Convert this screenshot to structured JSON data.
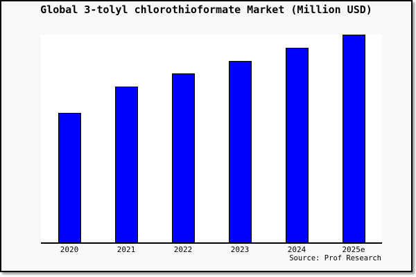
{
  "title": "Global 3-tolyl chlorothioformate Market (Million USD)",
  "source": "Source: Prof Research",
  "colors": {
    "bar_fill": "#0000ff",
    "bar_border": "#000000",
    "frame_background": "#f8f8f8",
    "plot_background": "#ffffff",
    "frame_border": "#000000",
    "axis_line": "#000000",
    "text": "#000000",
    "shadow": "#999999"
  },
  "chart_data": {
    "type": "bar",
    "title": "Global 3-tolyl chlorothioformate Market (Million USD)",
    "categories": [
      "2020",
      "2021",
      "2022",
      "2023",
      "2024",
      "2025e"
    ],
    "values": [
      100,
      120,
      130,
      140,
      150,
      160
    ],
    "ylim": [
      0,
      160
    ],
    "xlabel": "",
    "ylabel": "",
    "grid": false,
    "legend_position": "none",
    "y_axis_visible": false,
    "bar_color": "#0000ff",
    "bar_border_color": "#000000",
    "annotation": "Source: Prof Research"
  }
}
